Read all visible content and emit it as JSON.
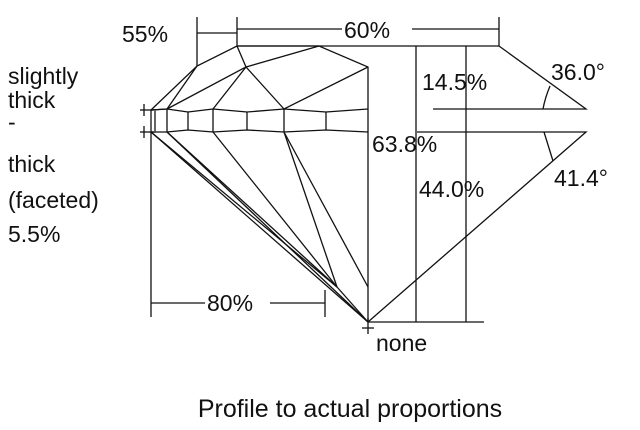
{
  "labels": {
    "crown_angle_table_pct": "55%",
    "table_pct": "60%",
    "crown_height_pct": "14.5%",
    "crown_angle": "36.0°",
    "total_depth_pct": "63.8%",
    "pavilion_depth_pct": "44.0%",
    "pavilion_angle": "41.4°",
    "lower_half_pct": "80%",
    "culet": "none",
    "girdle_lines": [
      "slightly",
      "thick",
      "-",
      "thick",
      "(faceted)",
      "5.5%"
    ]
  },
  "caption": "Profile to actual proportions"
}
